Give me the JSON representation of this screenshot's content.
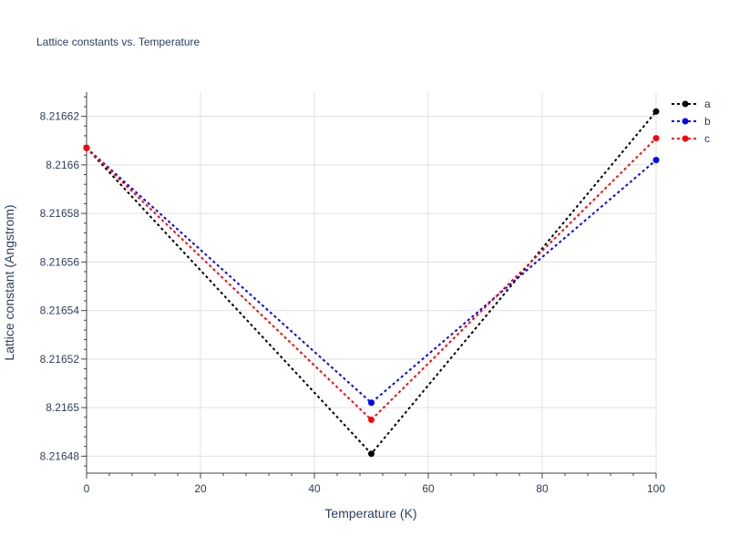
{
  "chart_data": {
    "type": "line",
    "title": "Lattice constants vs. Temperature",
    "xlabel": "Temperature (K)",
    "ylabel": "Lattice constant (Angstrom)",
    "x": [
      0,
      50,
      100
    ],
    "xlim": [
      0,
      100
    ],
    "ylim": [
      8.216473,
      8.21663
    ],
    "xticks": [
      0,
      20,
      40,
      60,
      80,
      100
    ],
    "xtick_labels": [
      "0",
      "20",
      "40",
      "60",
      "80",
      "100"
    ],
    "yticks": [
      8.21648,
      8.2165,
      8.21652,
      8.21654,
      8.21656,
      8.21658,
      8.2166,
      8.21662
    ],
    "ytick_labels": [
      "8.21648",
      "8.2165",
      "8.21652",
      "8.21654",
      "8.21656",
      "8.21658",
      "8.2166",
      "8.21662"
    ],
    "grid": true,
    "legend_position": "top-right",
    "series": [
      {
        "name": "a",
        "color": "#000000",
        "values": [
          8.216607,
          8.216481,
          8.216622
        ]
      },
      {
        "name": "b",
        "color": "#0000ff",
        "values": [
          8.216607,
          8.216502,
          8.216602
        ]
      },
      {
        "name": "c",
        "color": "#ff0000",
        "values": [
          8.216607,
          8.216495,
          8.216611
        ]
      }
    ]
  }
}
